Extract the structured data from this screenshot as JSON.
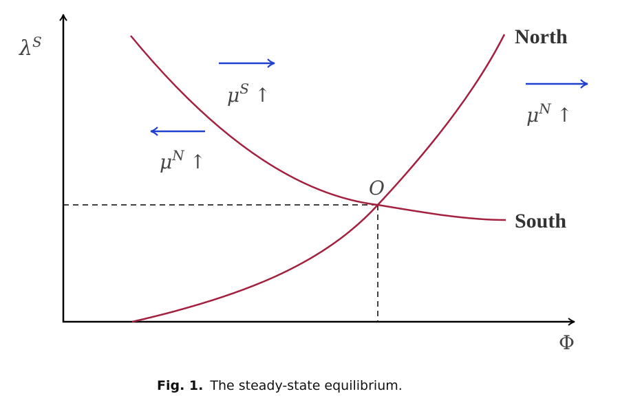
{
  "diagram": {
    "y_axis_label": "λ",
    "y_axis_label_sup": "S",
    "x_axis_label": "Φ",
    "equilibrium_label": "O",
    "curves": [
      {
        "name": "North",
        "color": "#a3203f"
      },
      {
        "name": "South",
        "color": "#a3203f"
      }
    ],
    "shifts": [
      {
        "symbol": "μ",
        "sup": "S",
        "change": "↑",
        "direction": "right",
        "color": "#1f3fcf"
      },
      {
        "symbol": "μ",
        "sup": "N",
        "change": "↑",
        "direction": "left",
        "color": "#1f3fcf"
      },
      {
        "symbol": "μ",
        "sup": "N",
        "change": "↑",
        "direction": "right",
        "color": "#1f3fcf"
      }
    ]
  },
  "caption": {
    "label": "Fig. 1.",
    "text": "The steady-state equilibrium."
  }
}
